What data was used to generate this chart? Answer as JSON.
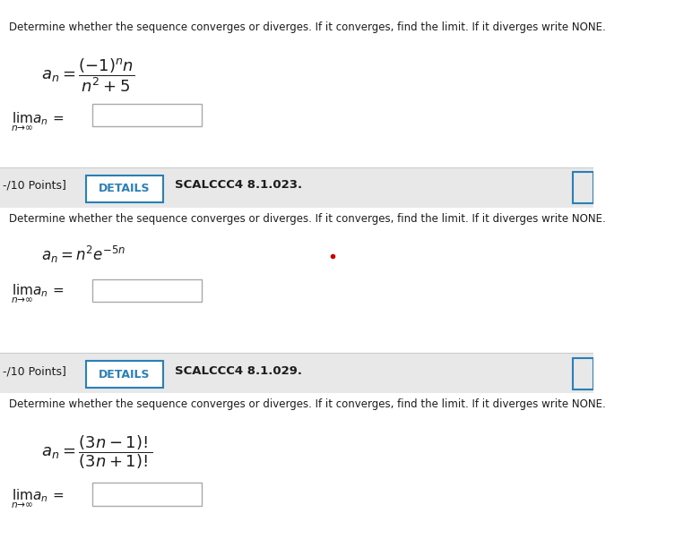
{
  "bg_color": "#ffffff",
  "gray_bar_color": "#e8e8e8",
  "blue_text_color": "#1a5276",
  "dark_text_color": "#1c1c1c",
  "red_dot_color": "#cc0000",
  "instruction_text": "Determine whether the sequence converges or diverges. If it converges, find the limit. If it diverges write NONE.",
  "details_btn_color": "#ffffff",
  "details_btn_border": "#2980b9",
  "details_btn_text": "DETAILS",
  "section1": {
    "formula_an": "a_n = \\frac{(-1)^n n}{n^2 + 5}",
    "limit_label": "\\lim_{n \\to \\infty} a_n ="
  },
  "section2": {
    "label": "SCALCCC4 8.1.023.",
    "formula_an": "a_n = n^2 e^{-5n}",
    "limit_label": "\\lim_{n \\to \\infty} a_n ="
  },
  "section3": {
    "label": "SCALCCC4 8.1.029.",
    "formula_an": "a_n = \\frac{(3n-1)!}{(3n+1)!}",
    "limit_label": "\\lim_{n \\to \\infty} a_n ="
  },
  "figsize": [
    7.53,
    6.02
  ],
  "dpi": 100
}
